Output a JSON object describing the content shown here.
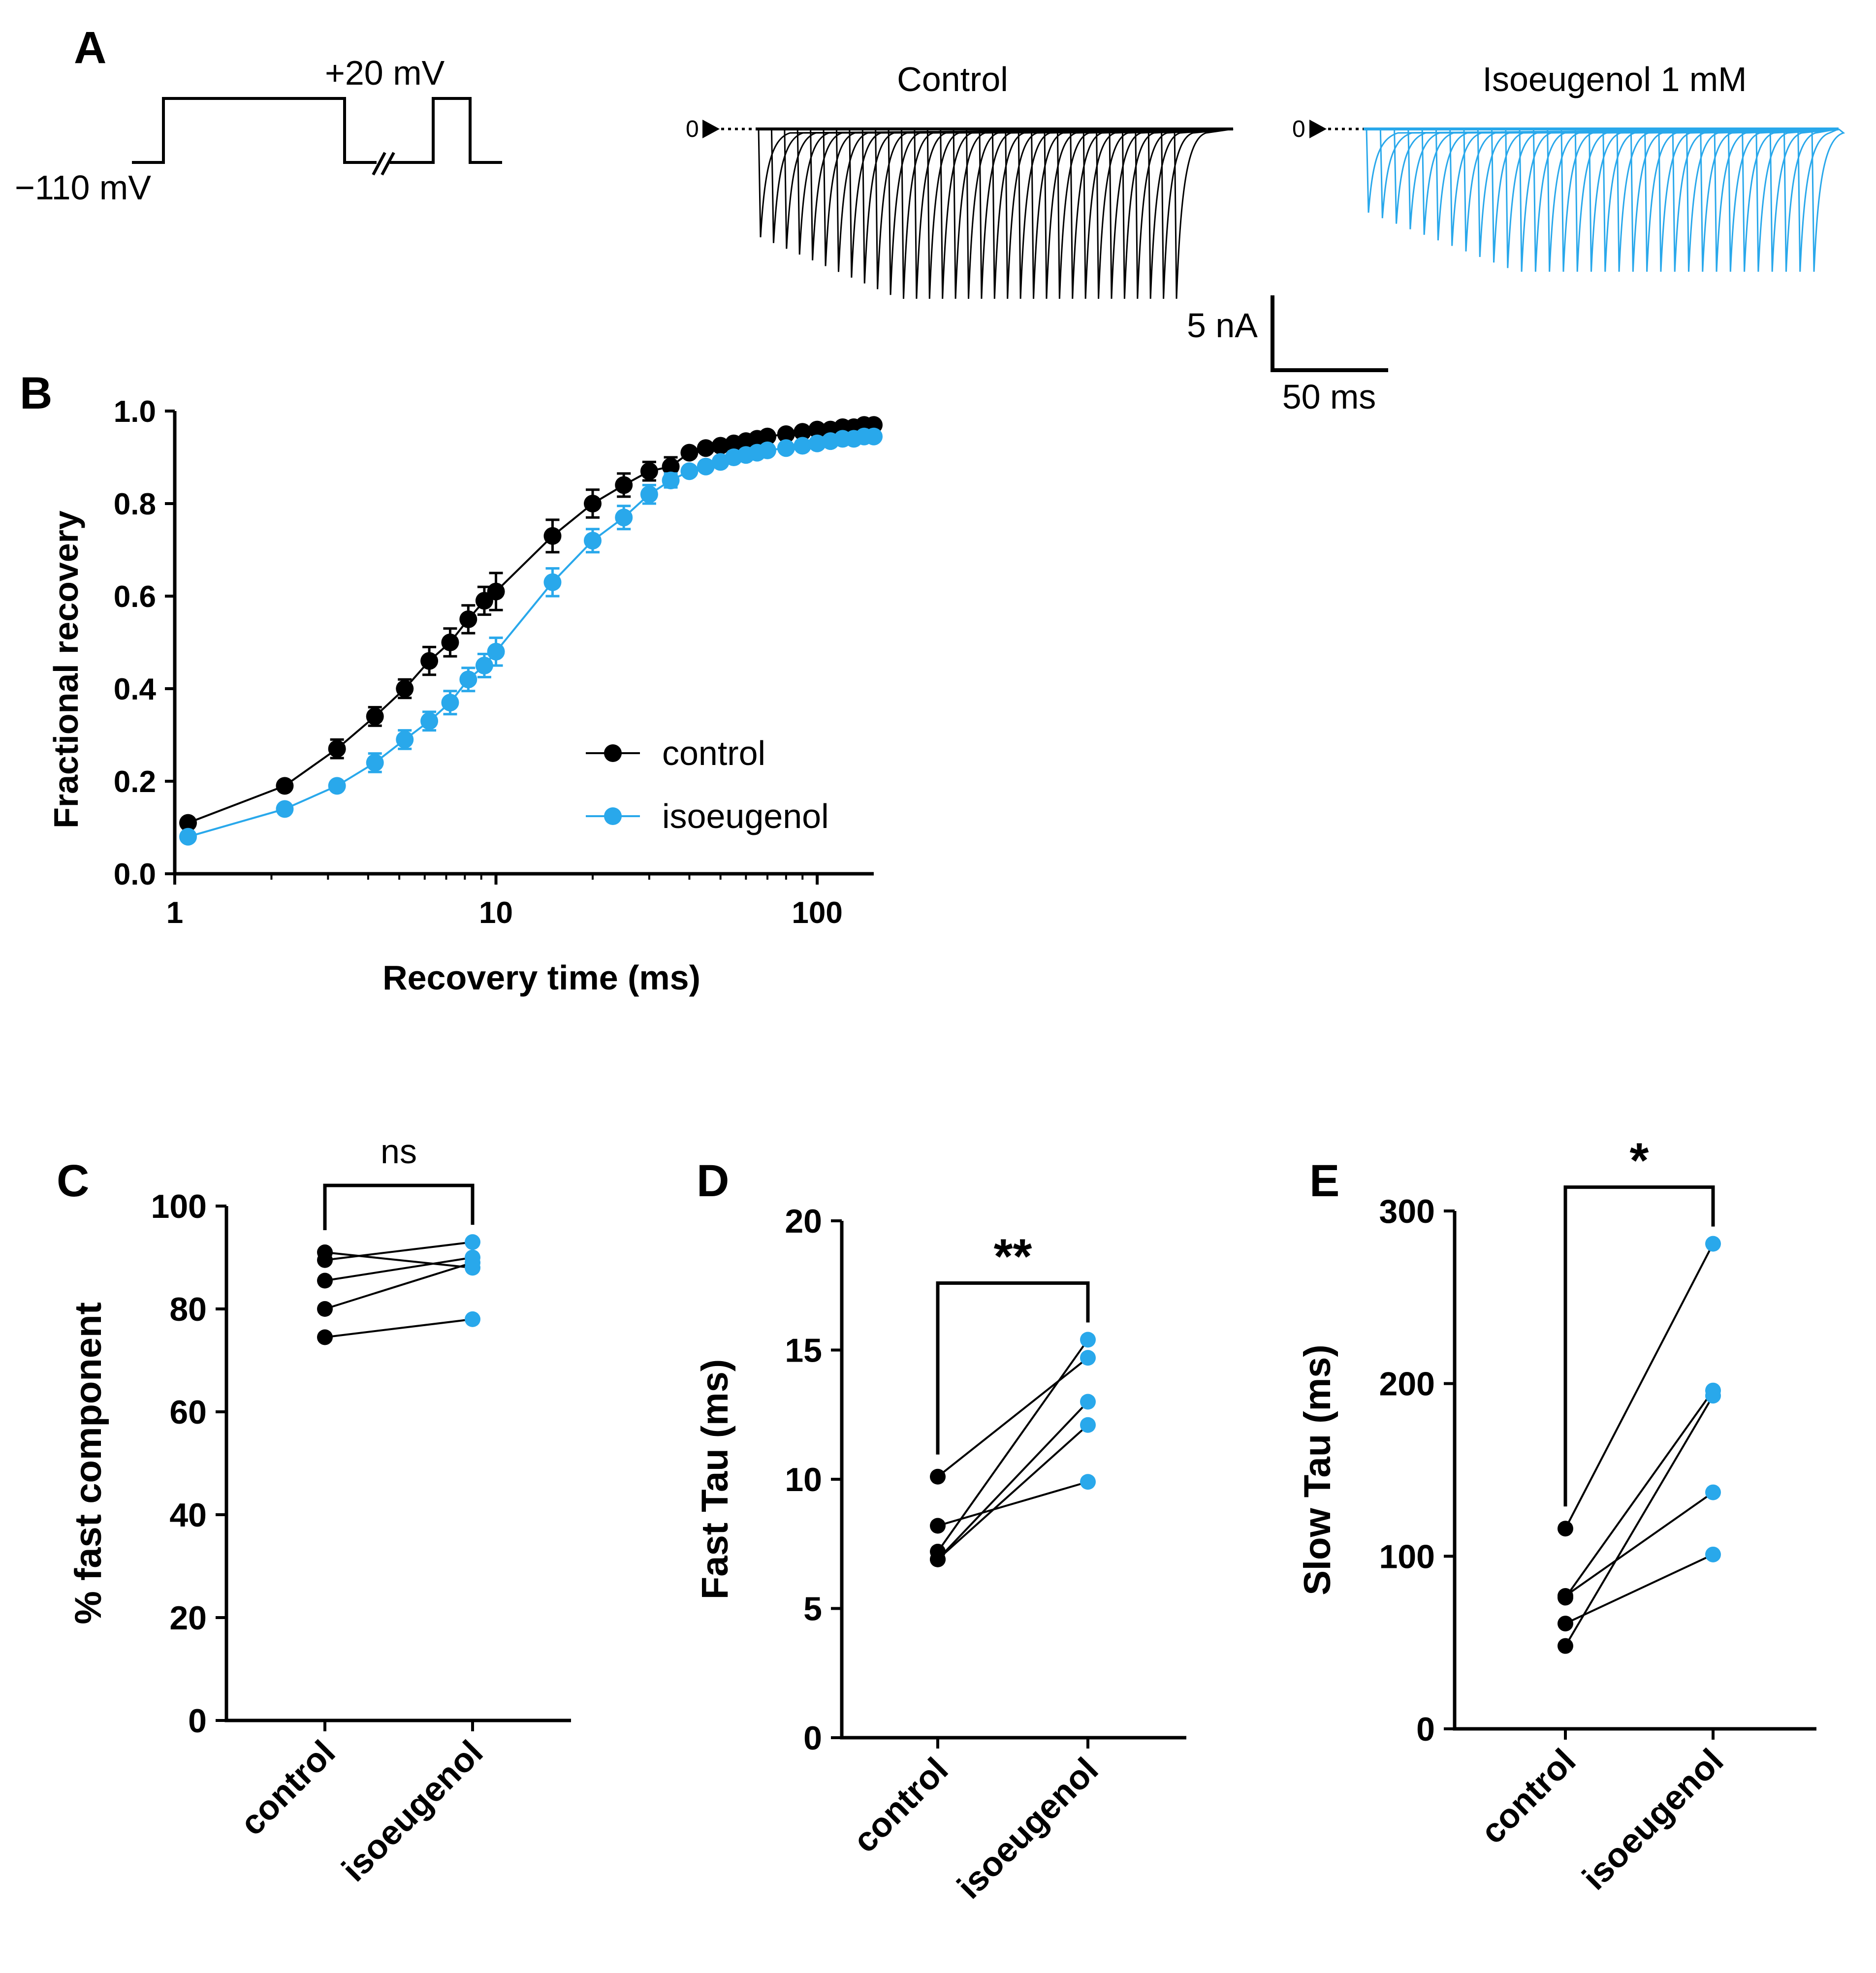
{
  "colors": {
    "control": "#000000",
    "isoeugenol": "#29A8EB"
  },
  "panel_a": {
    "label": "A",
    "protocol": {
      "hold_label": "−110 mV",
      "step_label": "+20 mV"
    },
    "traces": [
      {
        "title": "Control",
        "zero_label": "0",
        "color": "#000000",
        "n_sweeps": 33
      },
      {
        "title": "Isoeugenol 1 mM",
        "zero_label": "0",
        "color": "#29A8EB",
        "n_sweeps": 33
      }
    ],
    "scale_bar": {
      "current_label": "5 nA",
      "time_label": "50 ms"
    }
  },
  "chart_data": [
    {
      "panel": "B",
      "type": "scatter",
      "xscale": "log",
      "xlabel": "Recovery time (ms)",
      "ylabel": "Fractional recovery",
      "xlim": [
        1,
        150
      ],
      "ylim": [
        0,
        1.0
      ],
      "xticks": [
        "1",
        "10",
        "100"
      ],
      "yticks": [
        "0.0",
        "0.2",
        "0.4",
        "0.6",
        "0.8",
        "1.0"
      ],
      "legend_position": "lower-right",
      "x": [
        1.1,
        2.2,
        3.2,
        4.2,
        5.2,
        6.2,
        7.2,
        8.2,
        9.2,
        10.0,
        15.0,
        20.0,
        25.0,
        30.0,
        35.0,
        40.0,
        45.0,
        50.0,
        55.0,
        60.0,
        65.0,
        70.0,
        80.0,
        90.0,
        100.0,
        110.0,
        120.0,
        130.0,
        140.0,
        150.0
      ],
      "series": [
        {
          "name": "control",
          "color": "#000000",
          "values": [
            0.11,
            0.19,
            0.27,
            0.34,
            0.4,
            0.46,
            0.5,
            0.55,
            0.59,
            0.61,
            0.73,
            0.8,
            0.84,
            0.87,
            0.88,
            0.91,
            0.92,
            0.925,
            0.93,
            0.935,
            0.94,
            0.945,
            0.95,
            0.955,
            0.96,
            0.96,
            0.965,
            0.965,
            0.97,
            0.97
          ],
          "errors": [
            0.01,
            0.01,
            0.02,
            0.02,
            0.02,
            0.03,
            0.03,
            0.03,
            0.03,
            0.04,
            0.035,
            0.03,
            0.025,
            0.02,
            0.02,
            0.01,
            0.01,
            0.01,
            0.01,
            0.01,
            0.01,
            0.01,
            0.01,
            0.01,
            0.01,
            0.01,
            0.01,
            0.01,
            0.01,
            0.01
          ]
        },
        {
          "name": "isoeugenol",
          "color": "#29A8EB",
          "values": [
            0.08,
            0.14,
            0.19,
            0.24,
            0.29,
            0.33,
            0.37,
            0.42,
            0.45,
            0.48,
            0.63,
            0.72,
            0.77,
            0.82,
            0.85,
            0.87,
            0.88,
            0.89,
            0.9,
            0.905,
            0.91,
            0.915,
            0.92,
            0.925,
            0.93,
            0.935,
            0.94,
            0.94,
            0.945,
            0.945
          ],
          "errors": [
            0.01,
            0.01,
            0.01,
            0.02,
            0.02,
            0.02,
            0.025,
            0.025,
            0.025,
            0.03,
            0.03,
            0.025,
            0.025,
            0.02,
            0.015,
            0.01,
            0.01,
            0.01,
            0.01,
            0.01,
            0.01,
            0.01,
            0.01,
            0.01,
            0.01,
            0.01,
            0.01,
            0.01,
            0.01,
            0.01
          ]
        }
      ]
    },
    {
      "panel": "C",
      "type": "scatter",
      "ylabel": "% fast component",
      "categories": [
        "control",
        "isoeugenol"
      ],
      "ylim": [
        0,
        100
      ],
      "yticks": [
        "0",
        "20",
        "40",
        "60",
        "80",
        "100"
      ],
      "significance": "ns",
      "pairs": [
        [
          91,
          88
        ],
        [
          89.5,
          93
        ],
        [
          85.5,
          90
        ],
        [
          80,
          89
        ],
        [
          74.5,
          78
        ]
      ]
    },
    {
      "panel": "D",
      "type": "scatter",
      "ylabel": "Fast Tau (ms)",
      "categories": [
        "control",
        "isoeugenol"
      ],
      "ylim": [
        0,
        20
      ],
      "yticks": [
        "0",
        "5",
        "10",
        "15",
        "20"
      ],
      "significance": "**",
      "pairs": [
        [
          10.1,
          14.7
        ],
        [
          8.2,
          9.9
        ],
        [
          7.2,
          15.4
        ],
        [
          6.9,
          13.0
        ],
        [
          6.9,
          12.1
        ]
      ]
    },
    {
      "panel": "E",
      "type": "scatter",
      "ylabel": "Slow Tau (ms)",
      "categories": [
        "control",
        "isoeugenol"
      ],
      "ylim": [
        0,
        300
      ],
      "yticks": [
        "0",
        "100",
        "200",
        "300"
      ],
      "significance": "*",
      "pairs": [
        [
          116,
          281
        ],
        [
          77,
          137
        ],
        [
          76,
          196
        ],
        [
          61,
          101
        ],
        [
          48,
          193
        ]
      ]
    }
  ]
}
